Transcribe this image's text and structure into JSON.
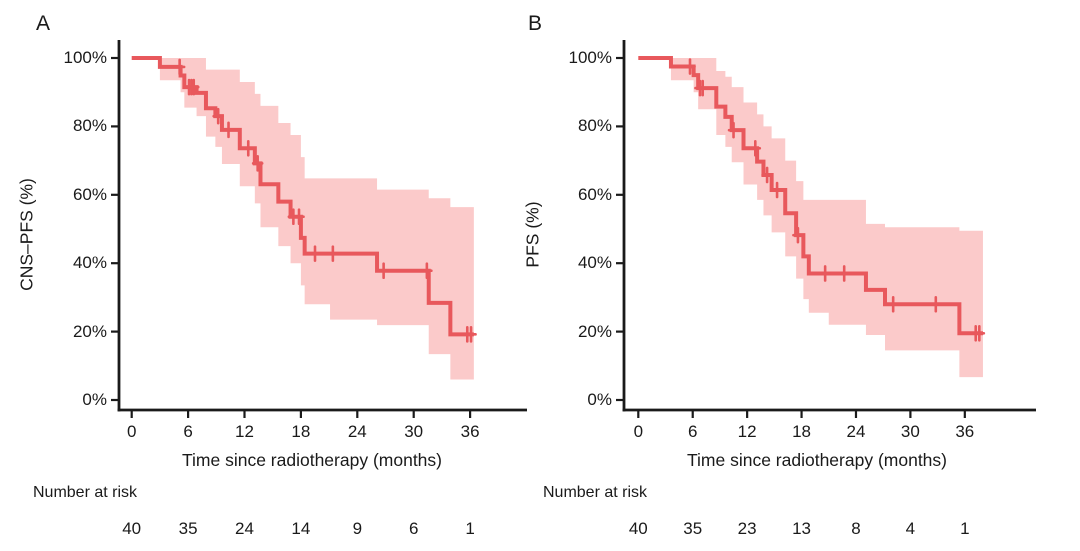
{
  "figure": {
    "background": "#ffffff"
  },
  "colors": {
    "line": "#e8585c",
    "band": "#fbcaca",
    "axis": "#1a1a1a",
    "text": "#1a1a1a"
  },
  "chart_data": [
    {
      "type": "line",
      "subtype": "kaplan-meier-step",
      "panel_label": "A",
      "ylabel": "CNS–PFS (%)",
      "xlabel": "Time since radiotherapy (months)",
      "legend": "none",
      "grid": false,
      "xlim": [
        0,
        42
      ],
      "ylim": [
        0,
        100
      ],
      "x_tick_values": [
        0,
        6,
        12,
        18,
        24,
        30,
        36
      ],
      "x_tick_labels": [
        "0",
        "6",
        "12",
        "18",
        "24",
        "30",
        "36"
      ],
      "y_tick_values": [
        100,
        80,
        60,
        40,
        20,
        0
      ],
      "y_tick_labels": [
        "100%",
        "80%",
        "60%",
        "40%",
        "20%",
        "0%"
      ],
      "at_risk_label": "Number at risk",
      "at_risk": [
        40,
        35,
        24,
        14,
        9,
        6,
        1
      ],
      "steps": [
        [
          0.0,
          100,
          100,
          100
        ],
        [
          3.0,
          97.4,
          93.5,
          100
        ],
        [
          5.2,
          94.9,
          90.0,
          100
        ],
        [
          5.6,
          91.5,
          85.5,
          100
        ],
        [
          6.9,
          89.8,
          83.0,
          100
        ],
        [
          7.9,
          85.3,
          77.0,
          96.6
        ],
        [
          8.9,
          83.0,
          74.0,
          96.6
        ],
        [
          9.6,
          79.0,
          69.0,
          96.6
        ],
        [
          11.5,
          73.6,
          62.5,
          93.0
        ],
        [
          13.1,
          69.2,
          57.5,
          89.5
        ],
        [
          13.7,
          63.1,
          50.5,
          86.0
        ],
        [
          15.6,
          58.0,
          45.0,
          81.0
        ],
        [
          16.9,
          53.6,
          40.0,
          77.5
        ],
        [
          18.0,
          47.4,
          33.5,
          71.0
        ],
        [
          18.4,
          42.8,
          28.0,
          64.8
        ],
        [
          21.1,
          42.8,
          23.5,
          64.8
        ],
        [
          26.1,
          37.8,
          21.9,
          61.5
        ],
        [
          31.6,
          28.4,
          13.4,
          59.0
        ],
        [
          33.9,
          19.2,
          6.0,
          56.4
        ],
        [
          36.4,
          19.2,
          6.0,
          56.4
        ]
      ],
      "censors": [
        [
          5.1,
          97.4
        ],
        [
          6.1,
          91.5
        ],
        [
          6.35,
          91.5
        ],
        [
          6.6,
          91.5
        ],
        [
          9.2,
          83.0
        ],
        [
          10.3,
          79.0
        ],
        [
          12.4,
          73.6
        ],
        [
          13.4,
          69.2
        ],
        [
          17.2,
          53.6
        ],
        [
          17.8,
          53.6
        ],
        [
          19.5,
          42.8
        ],
        [
          21.4,
          42.8
        ],
        [
          26.8,
          37.8
        ],
        [
          31.4,
          37.8
        ],
        [
          35.7,
          19.2
        ],
        [
          36.1,
          19.2
        ]
      ]
    },
    {
      "type": "line",
      "subtype": "kaplan-meier-step",
      "panel_label": "B",
      "ylabel": "PFS (%)",
      "xlabel": "Time since radiotherapy (months)",
      "legend": "none",
      "grid": false,
      "xlim": [
        0,
        42
      ],
      "ylim": [
        0,
        100
      ],
      "x_tick_values": [
        0,
        6,
        12,
        18,
        24,
        30,
        36
      ],
      "x_tick_labels": [
        "0",
        "6",
        "12",
        "18",
        "24",
        "30",
        "36"
      ],
      "y_tick_values": [
        100,
        80,
        60,
        40,
        20,
        0
      ],
      "y_tick_labels": [
        "100%",
        "80%",
        "60%",
        "40%",
        "20%",
        "0%"
      ],
      "at_risk_label": "Number at risk",
      "at_risk": [
        40,
        35,
        23,
        13,
        8,
        4,
        1
      ],
      "steps": [
        [
          0.0,
          100,
          100,
          100
        ],
        [
          3.6,
          97.5,
          93.5,
          100
        ],
        [
          6.1,
          95.0,
          90.0,
          100
        ],
        [
          6.6,
          91.2,
          85.0,
          100
        ],
        [
          8.6,
          85.8,
          77.5,
          96.2
        ],
        [
          9.6,
          82.8,
          74.0,
          94.5
        ],
        [
          10.3,
          78.9,
          69.5,
          91.5
        ],
        [
          11.6,
          73.6,
          63.0,
          87.0
        ],
        [
          13.1,
          69.7,
          58.5,
          83.5
        ],
        [
          13.8,
          65.8,
          54.0,
          80.0
        ],
        [
          14.7,
          61.4,
          49.0,
          76.5
        ],
        [
          16.2,
          54.6,
          42.0,
          70.0
        ],
        [
          17.4,
          48.2,
          35.5,
          64.0
        ],
        [
          18.2,
          42.0,
          29.5,
          58.5
        ],
        [
          18.8,
          37.0,
          25.5,
          58.5
        ],
        [
          21.0,
          37.0,
          22.0,
          58.5
        ],
        [
          25.1,
          32.2,
          19.0,
          51.5
        ],
        [
          27.2,
          28.0,
          14.5,
          50.5
        ],
        [
          35.4,
          19.5,
          6.7,
          49.5
        ],
        [
          38.0,
          19.5,
          6.7,
          49.5
        ]
      ],
      "censors": [
        [
          5.7,
          97.5
        ],
        [
          6.8,
          91.2
        ],
        [
          7.1,
          91.2
        ],
        [
          10.5,
          78.9
        ],
        [
          12.9,
          73.6
        ],
        [
          14.2,
          65.8
        ],
        [
          15.3,
          61.4
        ],
        [
          17.6,
          48.2
        ],
        [
          20.6,
          37.0
        ],
        [
          22.7,
          37.0
        ],
        [
          28.1,
          28.0
        ],
        [
          32.8,
          28.0
        ],
        [
          37.2,
          19.5
        ],
        [
          37.6,
          19.5
        ]
      ]
    }
  ]
}
